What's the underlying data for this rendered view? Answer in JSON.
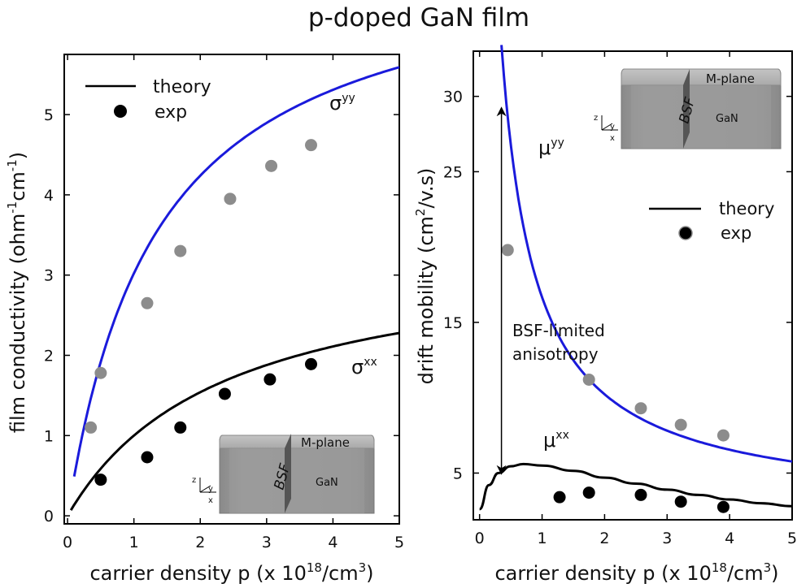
{
  "figure_title": "p-doped GaN film",
  "chart_data": [
    {
      "type": "scatter",
      "name": "conductivity",
      "xlabel_main": "carrier density p (x 10",
      "xlabel_exp": "18",
      "xlabel_unit": "/cm",
      "xlabel_unit_exp": "3",
      "xlabel_close": ")",
      "ylabel_main": "film conductivity (ohm",
      "ylabel_exp1": "-1",
      "ylabel_mid": "cm",
      "ylabel_exp2": "-1",
      "ylabel_close": ")",
      "xlim": [
        -0.05,
        5.0
      ],
      "ylim": [
        -0.1,
        5.75
      ],
      "xticks": [
        0,
        1,
        2,
        3,
        4,
        5
      ],
      "yticks": [
        0,
        1,
        2,
        3,
        4,
        5
      ],
      "legend": {
        "theory": "theory",
        "exp": "exp",
        "placement": "top-left"
      },
      "series": [
        {
          "name": "theory σyy",
          "kind": "line",
          "color": "#1a1adb",
          "formula": "A*p/(p+B)",
          "A": 7.1,
          "B": 1.35,
          "x_range": [
            0.1,
            5.0
          ]
        },
        {
          "name": "theory σxx",
          "kind": "line",
          "color": "#000000",
          "formula": "A*p/(p+B)",
          "A": 3.35,
          "B": 2.35,
          "x_range": [
            0.05,
            5.0
          ]
        },
        {
          "name": "exp σyy",
          "kind": "points",
          "color": "#8c8c8c",
          "x": [
            0.35,
            0.5,
            1.2,
            1.7,
            2.45,
            3.07,
            3.67
          ],
          "y": [
            1.1,
            1.78,
            2.65,
            3.3,
            3.95,
            4.36,
            4.62
          ]
        },
        {
          "name": "exp σxx",
          "kind": "points",
          "color": "#000000",
          "x": [
            0.5,
            1.2,
            1.7,
            2.37,
            3.05,
            3.67
          ],
          "y": [
            0.45,
            0.73,
            1.1,
            1.52,
            1.7,
            1.89
          ]
        }
      ],
      "annotations": [
        {
          "base": "σ",
          "sup": "yy",
          "x": 3.95,
          "y": 5.0
        },
        {
          "base": "σ",
          "sup": "xx",
          "x": 4.0,
          "y": 1.78
        }
      ],
      "inset": {
        "plane": "M-plane",
        "fault": "BSF",
        "material": "GaN",
        "ax_z": "z",
        "ax_y": "y",
        "ax_x": "x"
      }
    },
    {
      "type": "scatter",
      "name": "mobility",
      "xlabel_main": "carrier density p (x 10",
      "xlabel_exp": "18",
      "xlabel_unit": "/cm",
      "xlabel_unit_exp": "3",
      "xlabel_close": ")",
      "ylabel_main": "drift mobility  (cm",
      "ylabel_exp1": "2",
      "ylabel_mid": "/v.s)",
      "xlim": [
        -0.1,
        5.0
      ],
      "ylim": [
        1.9,
        33.0
      ],
      "xticks": [
        0,
        1,
        2,
        3,
        4,
        5
      ],
      "yticks": [
        5,
        15,
        25,
        30
      ],
      "legend": {
        "theory": "theory",
        "exp": "exp",
        "placement": "right"
      },
      "series": [
        {
          "name": "theory μyy",
          "kind": "line",
          "color": "#1a1adb",
          "formula": "a+b/(p+c)",
          "a": 2.5,
          "b": 17.0,
          "c": 0.2,
          "x_range": [
            0.35,
            5.0
          ]
        },
        {
          "name": "theory μxx",
          "kind": "line",
          "color": "#000000",
          "formula": "piecewise",
          "x": [
            0.0,
            0.15,
            0.3,
            0.5,
            0.7,
            1.0,
            1.5,
            2.0,
            2.5,
            3.0,
            3.5,
            4.0,
            4.5,
            5.0
          ],
          "y": [
            2.6,
            4.2,
            5.0,
            5.45,
            5.6,
            5.5,
            5.15,
            4.7,
            4.3,
            3.9,
            3.55,
            3.25,
            3.0,
            2.8
          ]
        },
        {
          "name": "exp μyy",
          "kind": "points",
          "color": "#8c8c8c",
          "x": [
            0.45,
            1.75,
            2.58,
            3.22,
            3.9
          ],
          "y": [
            19.8,
            11.2,
            9.3,
            8.2,
            7.5
          ]
        },
        {
          "name": "exp μxx",
          "kind": "points",
          "color": "#000000",
          "x": [
            1.28,
            1.75,
            2.58,
            3.22,
            3.9
          ],
          "y": [
            3.4,
            3.7,
            3.55,
            3.1,
            2.75
          ]
        }
      ],
      "annotations": [
        {
          "base": "μ",
          "sup": "yy",
          "x": 0.95,
          "y": 26.5
        },
        {
          "base": "μ",
          "sup": "xx",
          "x": 1.05,
          "y": 6.8
        },
        {
          "text1": "BSF-limited",
          "text2": "anisotropy",
          "x": 0.48,
          "y": 15.0
        }
      ],
      "arrow": {
        "x": 0.35,
        "y_top": 29.0,
        "y_bottom": 5.2
      },
      "inset": {
        "plane": "M-plane",
        "fault": "BSF",
        "material": "GaN",
        "ax_z": "z",
        "ax_y": "y",
        "ax_x": "x"
      }
    }
  ]
}
